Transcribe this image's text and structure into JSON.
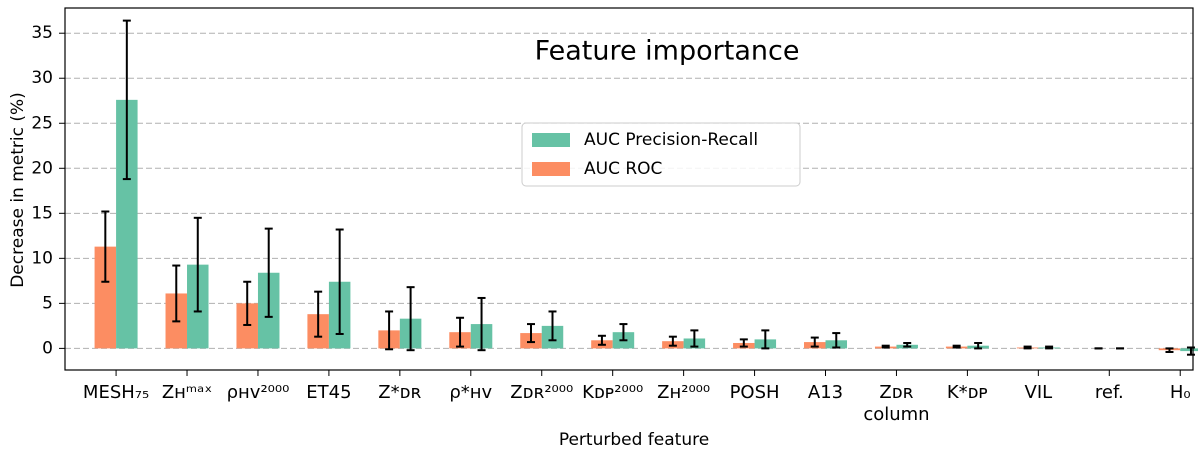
{
  "chart_data": {
    "type": "bar",
    "title": "Feature importance",
    "x_label": "Perturbed feature",
    "y_label": "Decrease in metric (%)",
    "categories": [
      "MESH₇₅",
      "Zʜᵐᵃˣ",
      "ρʜᴠ²⁰⁰⁰",
      "ET45",
      "Z*ᴅʀ",
      "ρ*ʜᴠ",
      "Zᴅʀ²⁰⁰⁰",
      "Kᴅᴘ²⁰⁰⁰",
      "Zʜ²⁰⁰⁰",
      "POSH",
      "A13",
      "Zᴅʀ\ncolumn",
      "K*ᴅᴘ",
      "VIL",
      "ref.",
      "H₀"
    ],
    "series": [
      {
        "name": "AUC ROC",
        "color": "#fc8d62",
        "values": [
          11.3,
          6.1,
          5.0,
          3.8,
          2.0,
          1.8,
          1.7,
          0.9,
          0.8,
          0.6,
          0.7,
          0.2,
          0.2,
          0.1,
          0.0,
          -0.2
        ],
        "errors": [
          3.9,
          3.1,
          2.4,
          2.5,
          2.1,
          1.6,
          1.0,
          0.5,
          0.5,
          0.4,
          0.5,
          0.1,
          0.1,
          0.1,
          0.0,
          0.2
        ]
      },
      {
        "name": "AUC Precision-Recall",
        "color": "#66c2a5",
        "values": [
          27.6,
          9.3,
          8.4,
          7.4,
          3.3,
          2.7,
          2.5,
          1.8,
          1.1,
          1.0,
          0.9,
          0.4,
          0.3,
          0.1,
          0.0,
          -0.3
        ],
        "errors": [
          8.8,
          5.2,
          4.9,
          5.8,
          3.5,
          2.9,
          1.6,
          0.9,
          0.9,
          1.0,
          0.8,
          0.2,
          0.3,
          0.1,
          0.0,
          0.4
        ]
      }
    ],
    "ylim": [
      -2.4,
      37.8
    ],
    "yticks": [
      0,
      5,
      10,
      15,
      20,
      25,
      30,
      35
    ],
    "grid": true,
    "legend": "center"
  }
}
